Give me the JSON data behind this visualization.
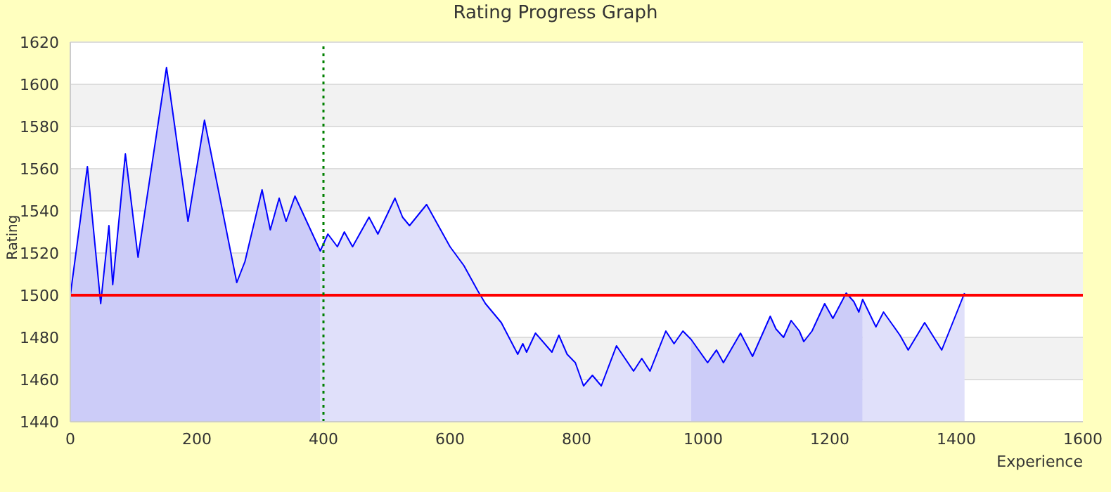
{
  "chart_data": {
    "type": "line",
    "title": "Rating Progress Graph",
    "xlabel": "Experience",
    "ylabel": "Rating",
    "xlim": [
      0,
      1600
    ],
    "xticks": [
      0,
      200,
      400,
      600,
      800,
      1000,
      1200,
      1400,
      1600
    ],
    "ylim": [
      1440,
      1620
    ],
    "yticks": [
      1440,
      1460,
      1480,
      1500,
      1520,
      1540,
      1560,
      1580,
      1600,
      1620
    ],
    "grid": "y",
    "ref_lines": [
      {
        "axis": "y",
        "value": 1500,
        "color": "#ff0000",
        "line_style": "solid"
      },
      {
        "axis": "x",
        "value": 400,
        "color": "#008000",
        "line_style": "dotted"
      }
    ],
    "series": [
      {
        "type": "area",
        "color": "#ccccf8",
        "x": [
          0,
          27,
          48,
          61,
          67,
          87,
          107,
          152,
          186,
          212,
          263,
          276,
          303,
          316,
          330,
          341,
          355,
          395
        ],
        "values": [
          1500,
          1561,
          1496,
          1533,
          1505,
          1567,
          1518,
          1608,
          1535,
          1583,
          1506,
          1516,
          1550,
          1531,
          1546,
          1535,
          1547,
          1521
        ]
      },
      {
        "type": "area",
        "color": "#e0e0fa",
        "x": [
          395,
          407,
          422,
          433,
          446,
          472,
          486,
          513,
          525,
          536,
          563,
          600,
          622,
          644,
          656,
          681,
          707,
          715,
          721,
          735,
          761,
          772,
          785,
          798,
          811,
          825,
          839,
          863,
          890,
          903,
          916,
          941,
          954,
          968,
          981
        ],
        "values": [
          1521,
          1529,
          1523,
          1530,
          1523,
          1537,
          1529,
          1546,
          1537,
          1533,
          1543,
          1523,
          1514,
          1502,
          1496,
          1487,
          1472,
          1477,
          1473,
          1482,
          1473,
          1481,
          1472,
          1468,
          1457,
          1462,
          1457,
          1476,
          1464,
          1470,
          1464,
          1483,
          1477,
          1483,
          1479
        ]
      },
      {
        "type": "area",
        "color": "#ccccf8",
        "x": [
          981,
          1007,
          1021,
          1032,
          1059,
          1078,
          1106,
          1115,
          1127,
          1139,
          1152,
          1159,
          1172,
          1192,
          1205,
          1226,
          1238,
          1246,
          1252
        ],
        "values": [
          1479,
          1468,
          1474,
          1468,
          1482,
          1471,
          1490,
          1484,
          1480,
          1488,
          1483,
          1478,
          1483,
          1496,
          1489,
          1501,
          1497,
          1492,
          1498
        ]
      },
      {
        "type": "area",
        "color": "#e0e0fa",
        "x": [
          1252,
          1273,
          1285,
          1311,
          1324,
          1350,
          1377,
          1413
        ],
        "values": [
          1498,
          1485,
          1492,
          1481,
          1474,
          1487,
          1474,
          1501
        ]
      },
      {
        "color": "#0000ff",
        "x": [
          0,
          27,
          48,
          61,
          67,
          87,
          107,
          152,
          186,
          212,
          263,
          276,
          303,
          316,
          330,
          341,
          355,
          395,
          407,
          422,
          433,
          446,
          472,
          486,
          513,
          525,
          536,
          563,
          600,
          622,
          644,
          656,
          681,
          707,
          715,
          721,
          735,
          761,
          772,
          785,
          798,
          811,
          825,
          839,
          863,
          890,
          903,
          916,
          941,
          954,
          968,
          981,
          1007,
          1021,
          1032,
          1059,
          1078,
          1106,
          1115,
          1127,
          1139,
          1152,
          1159,
          1172,
          1192,
          1205,
          1226,
          1238,
          1246,
          1252,
          1273,
          1285,
          1311,
          1324,
          1350,
          1377,
          1413
        ],
        "values": [
          1500,
          1561,
          1496,
          1533,
          1505,
          1567,
          1518,
          1608,
          1535,
          1583,
          1506,
          1516,
          1550,
          1531,
          1546,
          1535,
          1547,
          1521,
          1529,
          1523,
          1530,
          1523,
          1537,
          1529,
          1546,
          1537,
          1533,
          1543,
          1523,
          1514,
          1502,
          1496,
          1487,
          1472,
          1477,
          1473,
          1482,
          1473,
          1481,
          1472,
          1468,
          1457,
          1462,
          1457,
          1476,
          1464,
          1470,
          1464,
          1483,
          1477,
          1483,
          1479,
          1468,
          1474,
          1468,
          1482,
          1471,
          1490,
          1484,
          1480,
          1488,
          1483,
          1478,
          1483,
          1496,
          1489,
          1501,
          1497,
          1492,
          1498,
          1485,
          1492,
          1481,
          1474,
          1487,
          1474,
          1501
        ]
      }
    ]
  }
}
